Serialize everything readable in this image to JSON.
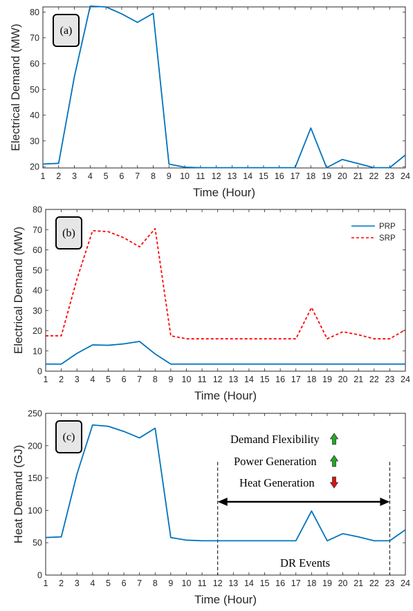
{
  "chart_data": [
    {
      "type": "line",
      "panel_label": "(a)",
      "xlabel": "Time (Hour)",
      "ylabel": "Electrical Demand (MW)",
      "xlim": [
        1,
        24
      ],
      "ylim": [
        19.5,
        82
      ],
      "yticks": [
        20,
        30,
        40,
        50,
        60,
        70,
        80
      ],
      "x": [
        1,
        2,
        3,
        4,
        5,
        6,
        7,
        8,
        9,
        10,
        11,
        12,
        13,
        14,
        15,
        16,
        17,
        18,
        19,
        20,
        21,
        22,
        23,
        24
      ],
      "series": [
        {
          "color": "#0072BD",
          "dash": "solid",
          "values": [
            21,
            21.3,
            55,
            82.3,
            82,
            79.3,
            76,
            79.5,
            21,
            19.8,
            19.6,
            19.6,
            19.6,
            19.6,
            19.6,
            19.6,
            19.6,
            35,
            19.6,
            22.8,
            21.2,
            19.6,
            19.6,
            24.5
          ]
        }
      ]
    },
    {
      "type": "line",
      "panel_label": "(b)",
      "xlabel": "Time (Hour)",
      "ylabel": "Electrical Demand (MW)",
      "xlim": [
        1,
        24
      ],
      "ylim": [
        0,
        80
      ],
      "yticks": [
        0,
        10,
        20,
        30,
        40,
        50,
        60,
        70,
        80
      ],
      "legend_position": "top-right",
      "x": [
        1,
        2,
        3,
        4,
        5,
        6,
        7,
        8,
        9,
        10,
        11,
        12,
        13,
        14,
        15,
        16,
        17,
        18,
        19,
        20,
        21,
        22,
        23,
        24
      ],
      "series": [
        {
          "name": "PRP",
          "color": "#0072BD",
          "dash": "solid",
          "values": [
            3.5,
            3.5,
            8.8,
            13,
            12.8,
            13.5,
            14.7,
            8.5,
            3.5,
            3.5,
            3.5,
            3.5,
            3.5,
            3.5,
            3.5,
            3.5,
            3.5,
            3.5,
            3.5,
            3.5,
            3.5,
            3.5,
            3.5,
            3.5
          ]
        },
        {
          "name": "SRP",
          "color": "#FF0000",
          "dash": "dashed",
          "values": [
            17.5,
            17.5,
            45.5,
            69.5,
            69,
            66,
            61.5,
            70.5,
            17.5,
            16,
            16,
            16,
            16,
            16,
            16,
            16,
            16,
            31.5,
            16,
            19.5,
            18,
            16,
            16,
            20.5
          ]
        }
      ]
    },
    {
      "type": "line",
      "panel_label": "(c)",
      "xlabel": "Time (Hour)",
      "ylabel": "Heat Demand (GJ)",
      "xlim": [
        1,
        24
      ],
      "ylim": [
        0,
        250
      ],
      "yticks": [
        0,
        50,
        100,
        150,
        200,
        250
      ],
      "x": [
        1,
        2,
        3,
        4,
        5,
        6,
        7,
        8,
        9,
        10,
        11,
        12,
        13,
        14,
        15,
        16,
        17,
        18,
        19,
        20,
        21,
        22,
        23,
        24
      ],
      "series": [
        {
          "color": "#0072BD",
          "dash": "solid",
          "values": [
            58,
            59,
            156,
            232,
            230,
            222,
            212,
            227,
            58,
            54,
            53,
            53,
            53,
            53,
            53,
            53,
            53,
            99,
            53,
            64,
            59,
            53,
            53,
            70
          ]
        }
      ],
      "annotations": {
        "demand_flexibility": "Demand Flexibility",
        "power_generation": "Power Generation",
        "heat_generation": "Heat Generation",
        "dr_events": "DR Events",
        "dr_start_hour": 12,
        "dr_end_hour": 23,
        "up_arrow_color": "#22AA22",
        "down_arrow_color": "#DD1111"
      }
    }
  ]
}
